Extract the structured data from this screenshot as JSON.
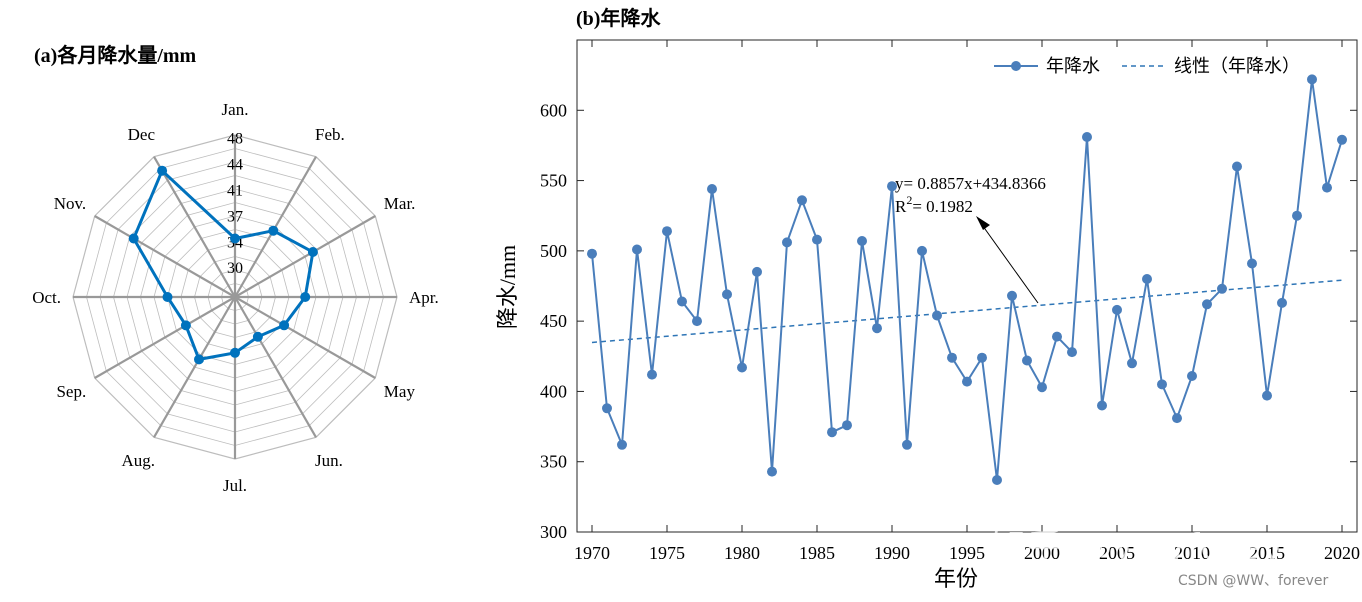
{
  "chart_data": [
    {
      "type": "radar",
      "title": "(a)各月降水量/mm",
      "categories": [
        "Jan.",
        "Feb.",
        "Mar.",
        "Apr.",
        "May",
        "Jun.",
        "Jul.",
        "Aug.",
        "Sep.",
        "Oct.",
        "Nov.",
        "Dec"
      ],
      "radial_ticks": [
        "30",
        "34",
        "37",
        "41",
        "44",
        "48"
      ],
      "rlim": [
        30,
        48
      ],
      "series": [
        {
          "values": [
            36.5,
            38.5,
            40.0,
            37.8,
            36.3,
            35.1,
            36.2,
            38.0,
            36.3,
            37.5,
            43.0,
            46.2
          ],
          "color": "#0072BD"
        }
      ],
      "grid": true
    },
    {
      "type": "line",
      "title": "(b)年降水",
      "xlabel": "年份",
      "ylabel": "降水/mm",
      "xlim": [
        1969,
        2021
      ],
      "ylim": [
        300,
        650
      ],
      "xticks": [
        1970,
        1975,
        1980,
        1985,
        1990,
        1995,
        2000,
        2005,
        2010,
        2015,
        2020
      ],
      "yticks": [
        300,
        350,
        400,
        450,
        500,
        550,
        600
      ],
      "x": [
        1970,
        1971,
        1972,
        1973,
        1974,
        1975,
        1976,
        1977,
        1978,
        1979,
        1980,
        1981,
        1982,
        1983,
        1984,
        1985,
        1986,
        1987,
        1988,
        1989,
        1990,
        1991,
        1992,
        1993,
        1994,
        1995,
        1996,
        1997,
        1998,
        1999,
        2000,
        2001,
        2002,
        2003,
        2004,
        2005,
        2006,
        2007,
        2008,
        2009,
        2010,
        2011,
        2012,
        2013,
        2014,
        2015,
        2016,
        2017,
        2018,
        2019,
        2020
      ],
      "series": [
        {
          "name": "年降水",
          "color": "#4A7EBB",
          "values": [
            498,
            388,
            362,
            501,
            412,
            514,
            464,
            450,
            544,
            469,
            417,
            485,
            343,
            506,
            536,
            508,
            371,
            376,
            507,
            445,
            546,
            362,
            500,
            454,
            424,
            407,
            424,
            337,
            468,
            422,
            403,
            439,
            428,
            581,
            390,
            458,
            420,
            480,
            405,
            381,
            411,
            462,
            473,
            560,
            491,
            397,
            463,
            525,
            622,
            545,
            579
          ]
        },
        {
          "name": "线性（年降水）",
          "color": "#2E75B6",
          "style": "dashed",
          "trend": {
            "slope": 0.8857,
            "intercept": 434.8366,
            "x0": 1970,
            "x1": 2020
          }
        }
      ],
      "legend": "top-right",
      "annotation": {
        "line1": "y= 0.8857x+434.8366",
        "r2_prefix": "R",
        "r2_sup": "2",
        "r2_rest": "= 0.1982"
      }
    }
  ],
  "watermarks": {
    "zhihu": "知乎 @WWforever",
    "csdn": "CSDN @WW、forever"
  }
}
